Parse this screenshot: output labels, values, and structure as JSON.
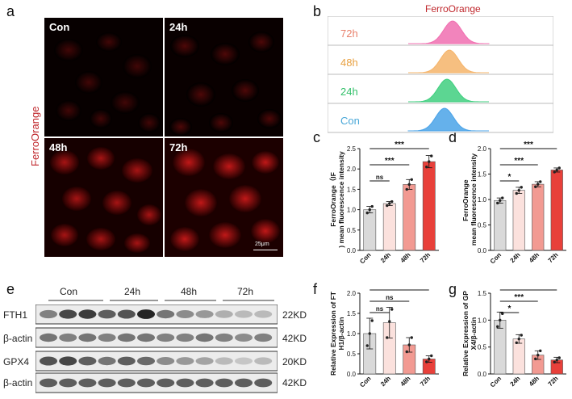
{
  "panels": {
    "a": "a",
    "b": "b",
    "c": "c",
    "d": "d",
    "e": "e",
    "f": "f",
    "g": "g"
  },
  "micro": {
    "side_label": "FerroOrange",
    "conditions": [
      "Con",
      "24h",
      "48h",
      "72h"
    ],
    "scalebar": "25μm"
  },
  "flow": {
    "title": "FerroOrange",
    "tracks": [
      {
        "label": "72h",
        "color": "#f06fb0",
        "label_color": "#e8806b"
      },
      {
        "label": "48h",
        "color": "#f5b46a",
        "label_color": "#e8a040"
      },
      {
        "label": "24h",
        "color": "#3fcf7f",
        "label_color": "#33c06a"
      },
      {
        "label": "Con",
        "color": "#4aa3e8",
        "label_color": "#4aa8d8"
      }
    ]
  },
  "blot": {
    "groups": [
      "Con",
      "24h",
      "48h",
      "72h"
    ],
    "rows": [
      {
        "label": "FTH1",
        "kd": "22KD"
      },
      {
        "label": "β-actin",
        "kd": "42KD"
      },
      {
        "label": "GPX4",
        "kd": "20KD"
      },
      {
        "label": "β-actin",
        "kd": "42KD"
      }
    ]
  },
  "chart_data": [
    {
      "panel": "c",
      "type": "bar",
      "categories": [
        "Con",
        "24h",
        "48h",
        "72h"
      ],
      "values": [
        1.0,
        1.15,
        1.62,
        2.18
      ],
      "errors": [
        0.08,
        0.05,
        0.12,
        0.15
      ],
      "points": [
        [
          0.92,
          1.0,
          1.08
        ],
        [
          1.1,
          1.15,
          1.2
        ],
        [
          1.5,
          1.62,
          1.74
        ],
        [
          2.05,
          2.18,
          2.32
        ]
      ],
      "ylabel": "FerroOrange（IF) mean fluorescence intensity",
      "ylim": [
        0,
        2.5
      ],
      "yticks": [
        "0.0",
        "0.5",
        "1.0",
        "1.5",
        "2.0",
        "2.5"
      ],
      "sig": [
        {
          "from": 0,
          "to": 1,
          "label": "ns"
        },
        {
          "from": 0,
          "to": 2,
          "label": "***"
        },
        {
          "from": 0,
          "to": 3,
          "label": "***"
        }
      ],
      "colors": [
        "#d9d9d9",
        "#fbe1dd",
        "#f29a92",
        "#e8403a"
      ]
    },
    {
      "panel": "d",
      "type": "bar",
      "categories": [
        "Con",
        "24h",
        "48h",
        "72h"
      ],
      "values": [
        0.98,
        1.18,
        1.3,
        1.58
      ],
      "errors": [
        0.05,
        0.06,
        0.05,
        0.04
      ],
      "points": [
        [
          0.93,
          0.98,
          1.03
        ],
        [
          1.12,
          1.18,
          1.24
        ],
        [
          1.25,
          1.3,
          1.35
        ],
        [
          1.54,
          1.58,
          1.62
        ]
      ],
      "ylabel": "FerroOrange mean fluorescence intensity",
      "ylim": [
        0,
        2.0
      ],
      "yticks": [
        "0.0",
        "0.5",
        "1.0",
        "1.5",
        "2.0"
      ],
      "sig": [
        {
          "from": 0,
          "to": 1,
          "label": "*"
        },
        {
          "from": 0,
          "to": 2,
          "label": "***"
        },
        {
          "from": 0,
          "to": 3,
          "label": "***"
        }
      ],
      "colors": [
        "#d9d9d9",
        "#fbe1dd",
        "#f29a92",
        "#e8403a"
      ]
    },
    {
      "panel": "f",
      "type": "bar",
      "categories": [
        "Con",
        "24h",
        "48h",
        "72h"
      ],
      "values": [
        1.0,
        1.27,
        0.72,
        0.37
      ],
      "errors": [
        0.38,
        0.38,
        0.18,
        0.08
      ],
      "points": [
        [
          0.7,
          1.0,
          1.32
        ],
        [
          0.9,
          1.3,
          1.6
        ],
        [
          0.55,
          0.72,
          0.9
        ],
        [
          0.3,
          0.37,
          0.45
        ]
      ],
      "ylabel": "Relative Expression of FTH1/β-actin",
      "ylim": [
        0,
        2.0
      ],
      "yticks": [
        "0.0",
        "0.5",
        "1.0",
        "1.5",
        "2.0"
      ],
      "sig": [
        {
          "from": 0,
          "to": 1,
          "label": "ns"
        },
        {
          "from": 0,
          "to": 2,
          "label": "ns"
        },
        {
          "from": 0,
          "to": 3,
          "label": "*"
        }
      ],
      "colors": [
        "#d9d9d9",
        "#fbe1dd",
        "#f29a92",
        "#e8403a"
      ]
    },
    {
      "panel": "g",
      "type": "bar",
      "categories": [
        "Con",
        "24h",
        "48h",
        "72h"
      ],
      "values": [
        1.0,
        0.65,
        0.35,
        0.26
      ],
      "errors": [
        0.15,
        0.08,
        0.08,
        0.05
      ],
      "points": [
        [
          0.88,
          1.0,
          1.12
        ],
        [
          0.58,
          0.65,
          0.72
        ],
        [
          0.28,
          0.35,
          0.43
        ],
        [
          0.22,
          0.26,
          0.3
        ]
      ],
      "ylabel": "Relative Expression of GPX4/β-actin",
      "ylim": [
        0,
        1.5
      ],
      "yticks": [
        "0.0",
        "0.5",
        "1.0",
        "1.5"
      ],
      "sig": [
        {
          "from": 0,
          "to": 1,
          "label": "*"
        },
        {
          "from": 0,
          "to": 2,
          "label": "***"
        },
        {
          "from": 0,
          "to": 3,
          "label": "***"
        }
      ],
      "colors": [
        "#d9d9d9",
        "#fbe1dd",
        "#f29a92",
        "#e8403a"
      ]
    }
  ]
}
